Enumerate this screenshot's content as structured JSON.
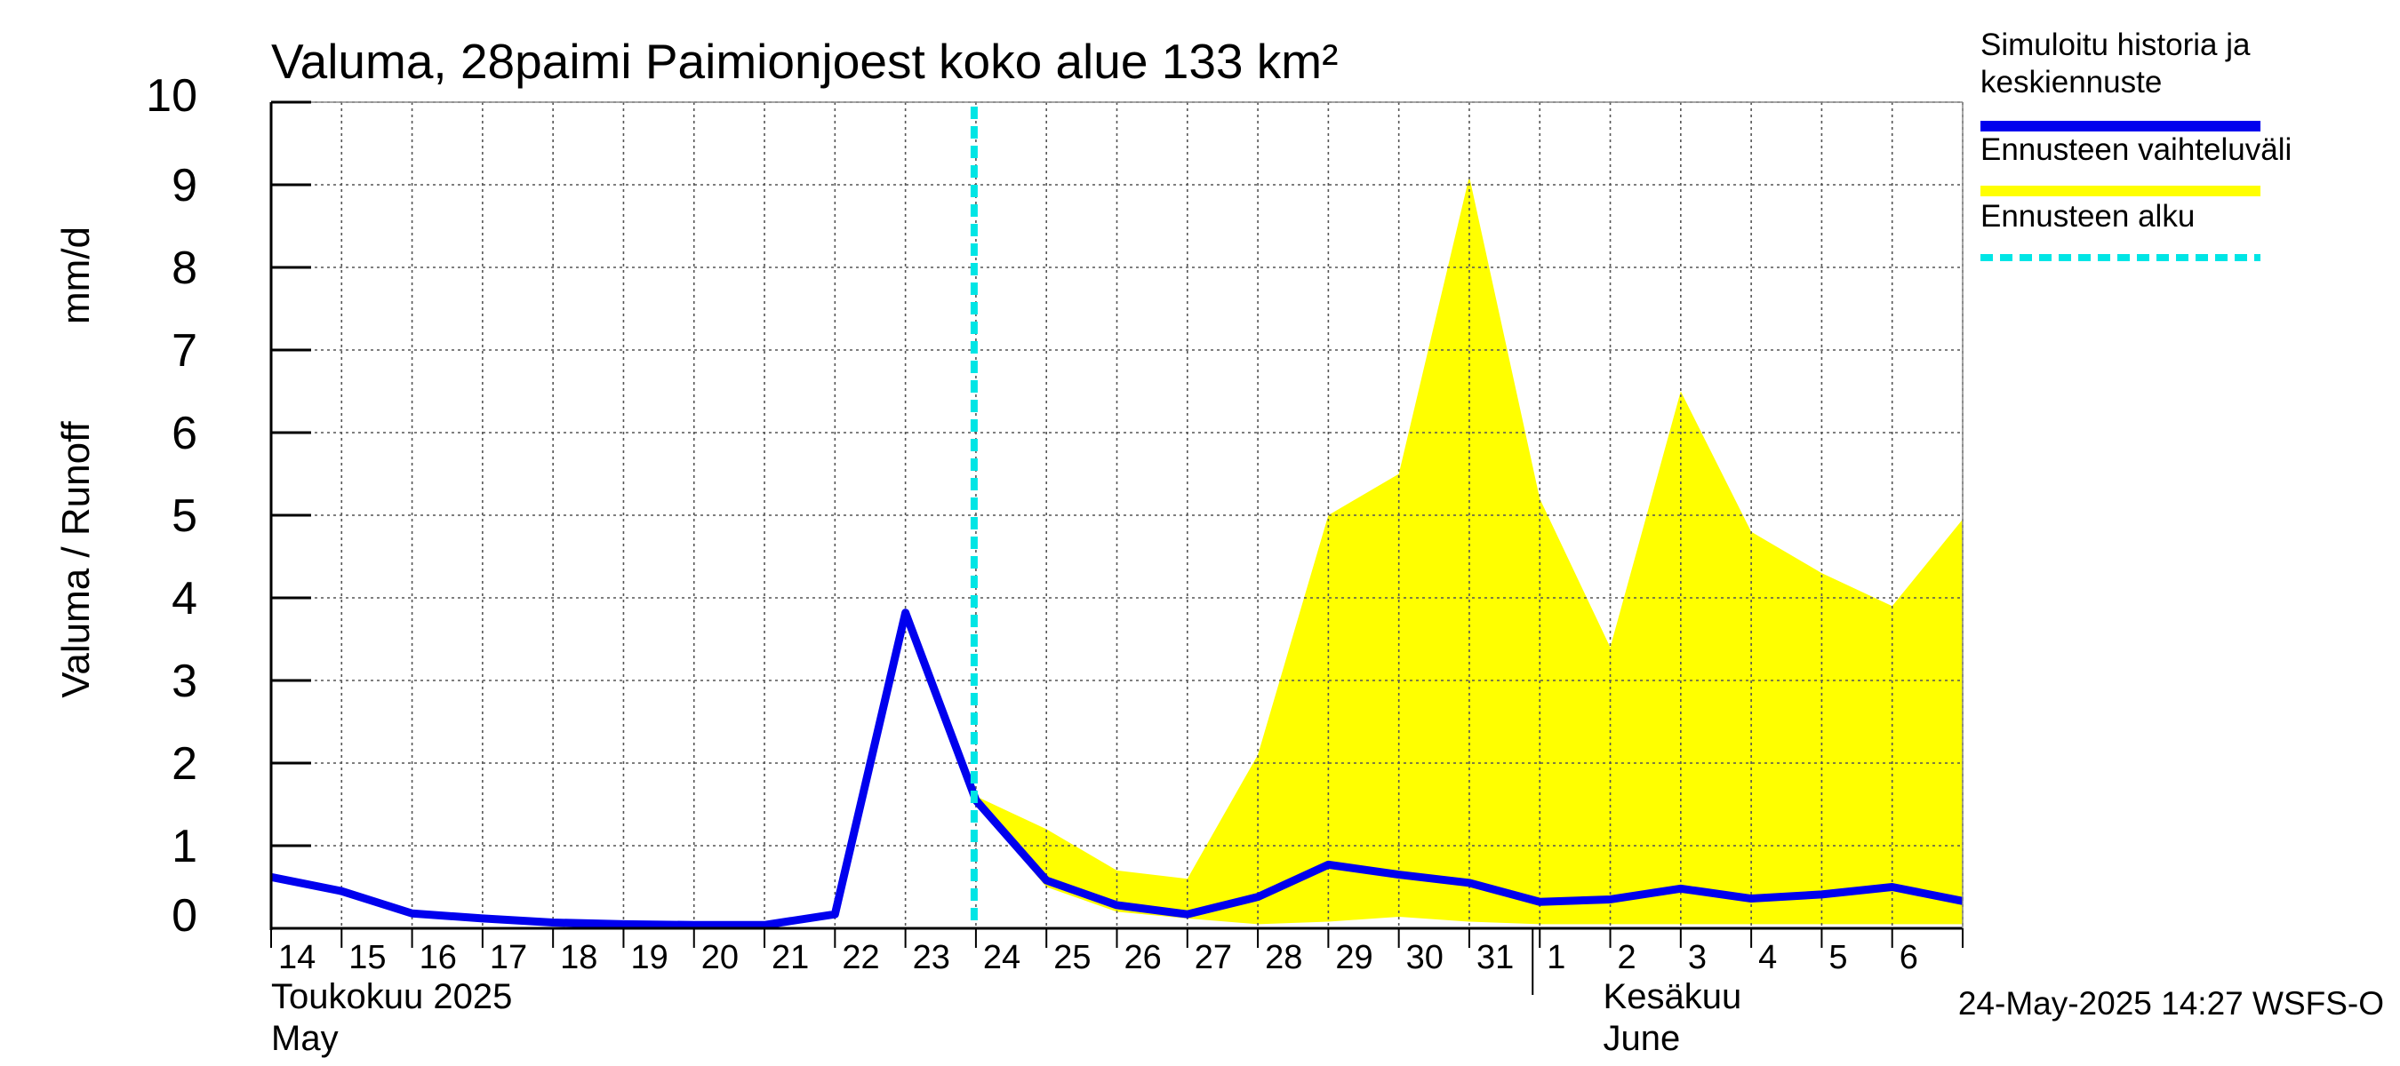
{
  "chart_data": {
    "type": "area",
    "title": "Valuma, 28paimi Paimionjoest koko alue 133 km²",
    "ylabel_fi": "Valuma / Runoff",
    "ylabel_unit": "mm/d",
    "ylim": [
      0,
      10
    ],
    "yticks": [
      "0",
      "1",
      "2",
      "3",
      "4",
      "5",
      "6",
      "7",
      "8",
      "9",
      "10"
    ],
    "grid": true,
    "x_start_date": "2025-05-14",
    "x_end_date": "2025-06-07",
    "x_tick_labels": [
      "14",
      "15",
      "16",
      "17",
      "18",
      "19",
      "20",
      "21",
      "22",
      "23",
      "24",
      "25",
      "26",
      "27",
      "28",
      "29",
      "30",
      "31",
      "1",
      "2",
      "3",
      "4",
      "5",
      "6"
    ],
    "month_labels": [
      {
        "line1": "Toukokuu  2025",
        "line2": "May"
      },
      {
        "line1": "Kesäkuu",
        "line2": "June"
      }
    ],
    "forecast_start": "2025-05-24",
    "series": [
      {
        "name": "Simuloitu historia ja keskiennuste",
        "color": "#0000ee",
        "x": [
          "2025-05-14",
          "2025-05-15",
          "2025-05-16",
          "2025-05-17",
          "2025-05-18",
          "2025-05-19",
          "2025-05-20",
          "2025-05-21",
          "2025-05-22",
          "2025-05-23",
          "2025-05-24",
          "2025-05-25",
          "2025-05-26",
          "2025-05-27",
          "2025-05-28",
          "2025-05-29",
          "2025-05-30",
          "2025-05-31",
          "2025-06-01",
          "2025-06-02",
          "2025-06-03",
          "2025-06-04",
          "2025-06-05",
          "2025-06-06",
          "2025-06-07"
        ],
        "values": [
          0.62,
          0.45,
          0.18,
          0.12,
          0.07,
          0.05,
          0.04,
          0.04,
          0.17,
          3.82,
          1.55,
          0.58,
          0.28,
          0.17,
          0.38,
          0.77,
          0.65,
          0.55,
          0.32,
          0.35,
          0.48,
          0.36,
          0.41,
          0.5,
          0.33
        ]
      },
      {
        "name": "Ennusteen vaihteluväli",
        "color": "#ffff00",
        "x": [
          "2025-05-24",
          "2025-05-25",
          "2025-05-26",
          "2025-05-27",
          "2025-05-28",
          "2025-05-29",
          "2025-05-30",
          "2025-05-31",
          "2025-06-01",
          "2025-06-02",
          "2025-06-03",
          "2025-06-04",
          "2025-06-05",
          "2025-06-06",
          "2025-06-07"
        ],
        "upper": [
          1.6,
          1.2,
          0.7,
          0.6,
          2.1,
          5.0,
          5.5,
          9.1,
          5.2,
          3.4,
          6.5,
          4.8,
          4.3,
          3.9,
          4.95
        ],
        "lower": [
          1.5,
          0.5,
          0.2,
          0.12,
          0.05,
          0.08,
          0.14,
          0.08,
          0.05,
          0.05,
          0.05,
          0.05,
          0.05,
          0.05,
          0.05
        ]
      }
    ],
    "legend": {
      "position": "top-right",
      "items": [
        {
          "line1": "Simuloitu historia ja",
          "line2": "keskiennuste",
          "color": "#0000ee",
          "style": "solid"
        },
        {
          "line1": "Ennusteen vaihteluväli",
          "line2": "",
          "color": "#ffff00",
          "style": "solid"
        },
        {
          "line1": "Ennusteen alku",
          "line2": "",
          "color": "#00e5e5",
          "style": "dashed"
        }
      ]
    },
    "footer": "24-May-2025 14:27 WSFS-O"
  }
}
